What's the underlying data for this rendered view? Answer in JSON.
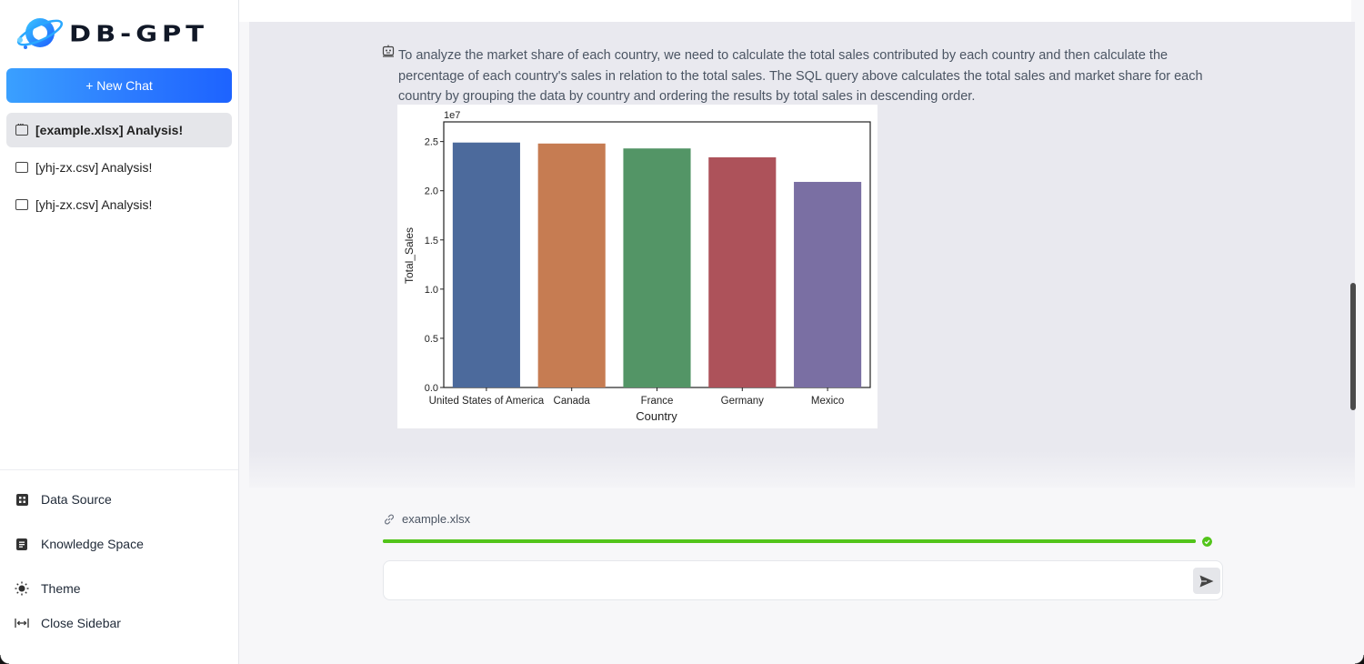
{
  "app": {
    "logo_text": "DB-GPT",
    "new_chat_label": "+ New Chat"
  },
  "sidebar": {
    "chats": [
      {
        "label": "[example.xlsx] Analysis!",
        "active": true
      },
      {
        "label": "[yhj-zx.csv] Analysis!",
        "active": false
      },
      {
        "label": "[yhj-zx.csv] Analysis!",
        "active": false
      }
    ],
    "menu": [
      {
        "label": "Data Source",
        "icon": "grid-icon"
      },
      {
        "label": "Knowledge Space",
        "icon": "document-icon"
      },
      {
        "label": "Theme",
        "icon": "sun-icon"
      },
      {
        "label": "Close Sidebar",
        "icon": "collapse-icon"
      }
    ]
  },
  "message": {
    "text": "To analyze the market share of each country, we need to calculate the total sales contributed by each country and then calculate the percentage of each country's sales in relation to the total sales. The SQL query above calculates the total sales and market share for each country by grouping the data by country and ordering the results by total sales in descending order."
  },
  "chart_data": {
    "type": "bar",
    "categories": [
      "United States of America",
      "Canada",
      "France",
      "Germany",
      "Mexico"
    ],
    "values": [
      24900000,
      24800000,
      24300000,
      23400000,
      20900000
    ],
    "colors": [
      "#4c6a9c",
      "#c67c52",
      "#539566",
      "#ad525a",
      "#7a6fa3"
    ],
    "xlabel": "Country",
    "ylabel": "Total_Sales",
    "offset_label": "1e7",
    "ylim": [
      0,
      27000000
    ],
    "yticks": [
      0,
      5000000,
      10000000,
      15000000,
      20000000,
      25000000
    ],
    "ytick_labels": [
      "0.0",
      "0.5",
      "1.0",
      "1.5",
      "2.0",
      "2.5"
    ],
    "grid": false
  },
  "upload": {
    "file_name": "example.xlsx",
    "progress": 1.0
  },
  "input": {
    "placeholder": "",
    "value": ""
  },
  "colors": {
    "accent": "#1d63ff",
    "success": "#52c41a"
  }
}
